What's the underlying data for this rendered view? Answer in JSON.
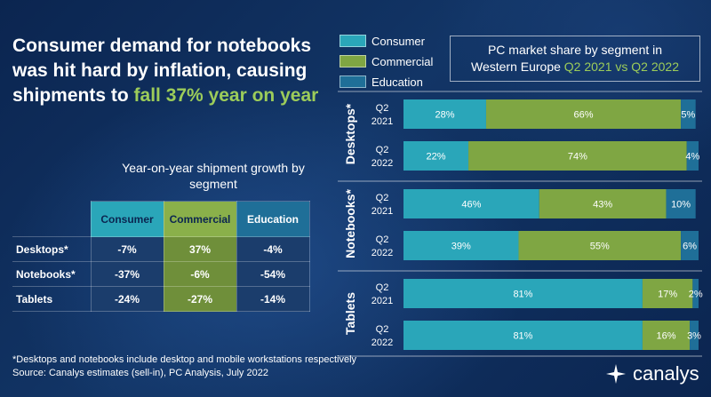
{
  "headline": {
    "part1": "Consumer demand for notebooks was hit hard by inflation, causing shipments to ",
    "highlight": "fall 37% year on year"
  },
  "table": {
    "subtitle": "Year-on-year shipment growth by segment",
    "headers": [
      "Consumer",
      "Commercial",
      "Education"
    ],
    "rows": [
      {
        "label": "Desktops*",
        "values": [
          "-7%",
          "37%",
          "-4%"
        ]
      },
      {
        "label": "Notebooks*",
        "values": [
          "-37%",
          "-6%",
          "-54%"
        ]
      },
      {
        "label": "Tablets",
        "values": [
          "-24%",
          "-27%",
          "-14%"
        ]
      }
    ]
  },
  "legend": [
    {
      "label": "Consumer",
      "color": "#2aa6b9"
    },
    {
      "label": "Commercial",
      "color": "#7fa643"
    },
    {
      "label": "Education",
      "color": "#1f6f98"
    }
  ],
  "chart_title": {
    "line1": "PC market share by segment in",
    "line2_prefix": "Western Europe ",
    "line2_highlight": "Q2 2021 vs Q2 2022"
  },
  "chart_data": {
    "type": "bar",
    "stacked": true,
    "orientation": "horizontal",
    "title": "PC market share by segment in Western Europe Q2 2021 vs Q2 2022",
    "groups": [
      {
        "name": "Desktops*",
        "bars": [
          {
            "label": [
              "Q2",
              "2021"
            ],
            "values": [
              28,
              66,
              5
            ],
            "labels": [
              "28%",
              "66%",
              "5%"
            ]
          },
          {
            "label": [
              "Q2",
              "2022"
            ],
            "values": [
              22,
              74,
              4
            ],
            "labels": [
              "22%",
              "74%",
              "4%"
            ]
          }
        ]
      },
      {
        "name": "Notebooks*",
        "bars": [
          {
            "label": [
              "Q2",
              "2021"
            ],
            "values": [
              46,
              43,
              10
            ],
            "labels": [
              "46%",
              "43%",
              "10%"
            ]
          },
          {
            "label": [
              "Q2",
              "2022"
            ],
            "values": [
              39,
              55,
              6
            ],
            "labels": [
              "39%",
              "55%",
              "6%"
            ]
          }
        ]
      },
      {
        "name": "Tablets",
        "bars": [
          {
            "label": [
              "Q2",
              "2021"
            ],
            "values": [
              81,
              17,
              2
            ],
            "labels": [
              "81%",
              "17%",
              "2%"
            ]
          },
          {
            "label": [
              "Q2",
              "2022"
            ],
            "values": [
              81,
              16,
              3
            ],
            "labels": [
              "81%",
              "16%",
              "3%"
            ]
          }
        ]
      }
    ],
    "series": [
      {
        "name": "Consumer",
        "color": "#2aa6b9"
      },
      {
        "name": "Commercial",
        "color": "#7fa643"
      },
      {
        "name": "Education",
        "color": "#1f6f98"
      }
    ]
  },
  "footnote": {
    "line1": "*Desktops and notebooks include desktop and mobile workstations respectively",
    "line2": "Source: Canalys estimates (sell-in), PC Analysis, July 2022"
  },
  "brand": "canalys"
}
